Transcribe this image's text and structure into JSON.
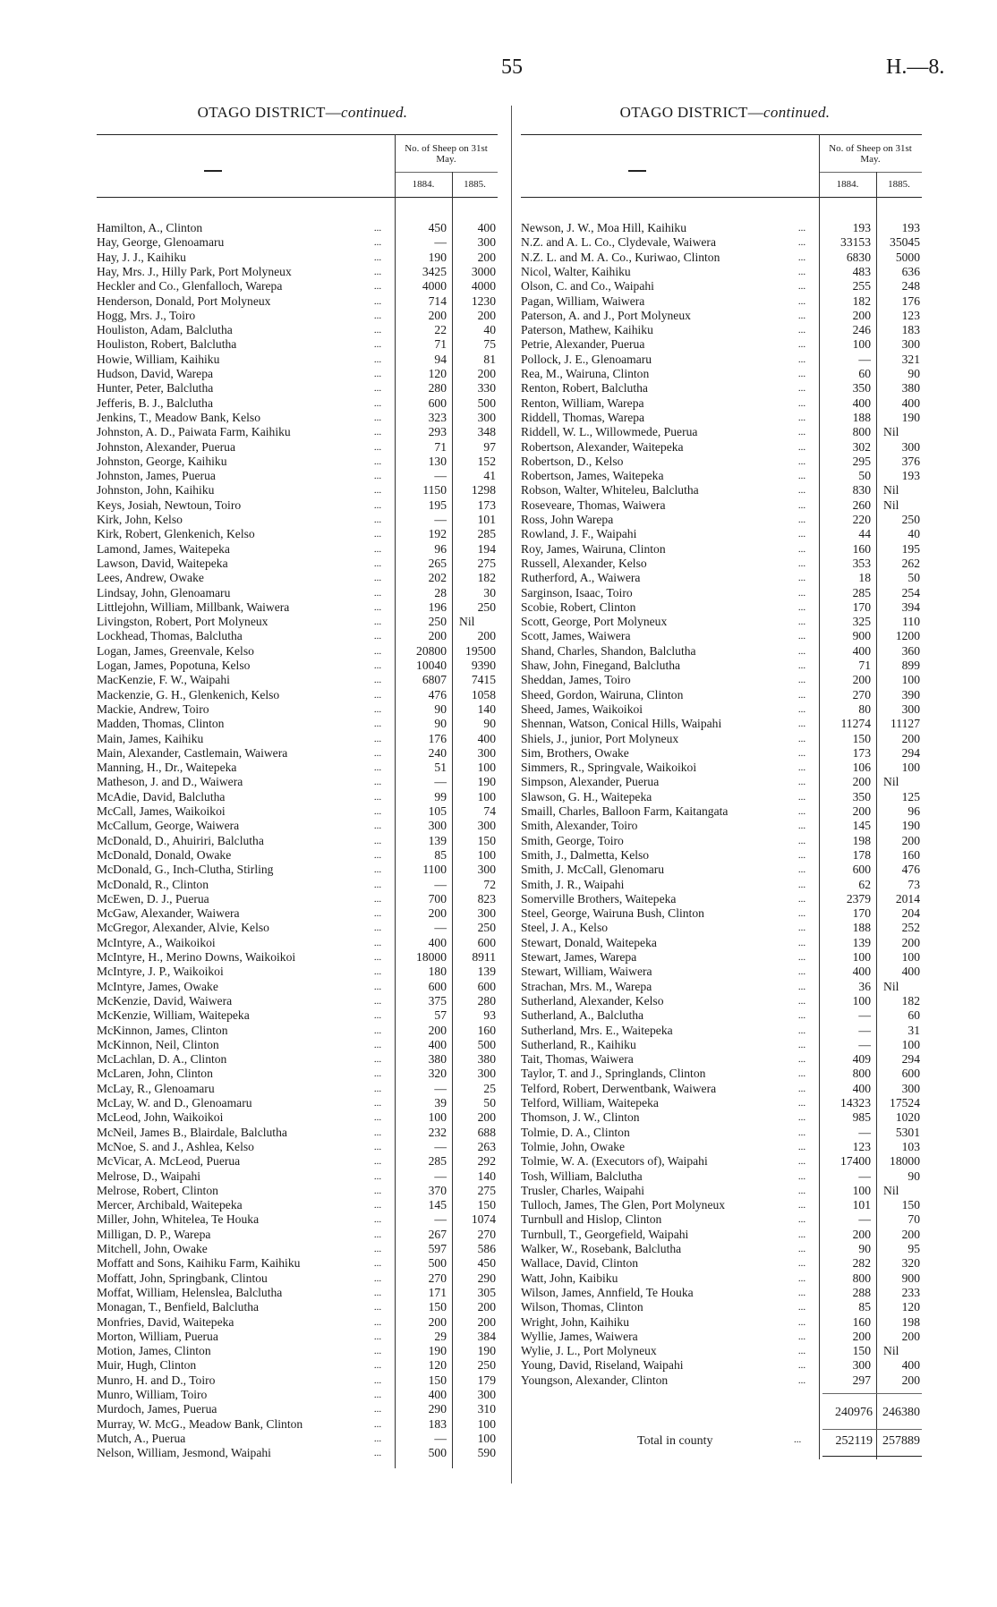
{
  "page_number": "55",
  "report_ref": "H.—8.",
  "left": {
    "heading": "OTAGO DISTRICT—",
    "heading_italic": "continued.",
    "col_dash": "—",
    "col_group": "No. of Sheep on 31st May.",
    "years": [
      "1884.",
      "1885."
    ],
    "rows": [
      [
        "Hamilton, A., Clinton",
        "450",
        "400"
      ],
      [
        "Hay, George, Glenoamaru",
        "—",
        "300"
      ],
      [
        "Hay, J. J., Kaihiku",
        "190",
        "200"
      ],
      [
        "Hay, Mrs. J., Hilly Park, Port Molyneux",
        "3425",
        "3000"
      ],
      [
        "Heckler and Co., Glenfalloch, Warepa",
        "4000",
        "4000"
      ],
      [
        "Henderson, Donald, Port Molyneux",
        "714",
        "1230"
      ],
      [
        "Hogg, Mrs. J., Toiro",
        "200",
        "200"
      ],
      [
        "Houliston, Adam, Balclutha",
        "22",
        "40"
      ],
      [
        "Houliston, Robert, Balclutha",
        "71",
        "75"
      ],
      [
        "Howie, William, Kaihiku",
        "94",
        "81"
      ],
      [
        "Hudson, David, Warepa",
        "120",
        "200"
      ],
      [
        "Hunter, Peter, Balclutha",
        "280",
        "330"
      ],
      [
        "Jefferis, B. J., Balclutha",
        "600",
        "500"
      ],
      [
        "Jenkins, T., Meadow Bank, Kelso",
        "323",
        "300"
      ],
      [
        "Johnston, A. D., Paiwata Farm, Kaihiku",
        "293",
        "348"
      ],
      [
        "Johnston, Alexander, Puerua",
        "71",
        "97"
      ],
      [
        "Johnston, George, Kaihiku",
        "130",
        "152"
      ],
      [
        "Johnston, James, Puerua",
        "—",
        "41"
      ],
      [
        "Johnston, John, Kaihiku",
        "1150",
        "1298"
      ],
      [
        "Keys, Josiah, Newtoun, Toiro",
        "195",
        "173"
      ],
      [
        "Kirk, John, Kelso",
        "—",
        "101"
      ],
      [
        "Kirk, Robert, Glenkenich, Kelso",
        "192",
        "285"
      ],
      [
        "Lamond, James, Waitepeka",
        "96",
        "194"
      ],
      [
        "Lawson, David, Waitepeka",
        "265",
        "275"
      ],
      [
        "Lees, Andrew, Owake",
        "202",
        "182"
      ],
      [
        "Lindsay, John, Glenoamaru",
        "28",
        "30"
      ],
      [
        "Littlejohn, William, Millbank, Waiwera",
        "196",
        "250"
      ],
      [
        "Livingston, Robert, Port Molyneux",
        "250",
        "Nil"
      ],
      [
        "Lockhead, Thomas, Balclutha",
        "200",
        "200"
      ],
      [
        "Logan, James, Greenvale, Kelso",
        "20800",
        "19500"
      ],
      [
        "Logan, James, Popotuna, Kelso",
        "10040",
        "9390"
      ],
      [
        "MacKenzie, F. W., Waipahi",
        "6807",
        "7415"
      ],
      [
        "Mackenzie, G. H., Glenkenich, Kelso",
        "476",
        "1058"
      ],
      [
        "Mackie, Andrew, Toiro",
        "90",
        "140"
      ],
      [
        "Madden, Thomas, Clinton",
        "90",
        "90"
      ],
      [
        "Main, James, Kaihiku",
        "176",
        "400"
      ],
      [
        "Main, Alexander, Castlemain, Waiwera",
        "240",
        "300"
      ],
      [
        "Manning, H., Dr., Waitepeka",
        "51",
        "100"
      ],
      [
        "Matheson, J. and D., Waiwera",
        "—",
        "190"
      ],
      [
        "McAdie, David, Balclutha",
        "99",
        "100"
      ],
      [
        "McCall, James, Waikoikoi",
        "105",
        "74"
      ],
      [
        "McCallum, George, Waiwera",
        "300",
        "300"
      ],
      [
        "McDonald, D., Ahuiriri, Balclutha",
        "139",
        "150"
      ],
      [
        "McDonald, Donald, Owake",
        "85",
        "100"
      ],
      [
        "McDonald, G., Inch-Clutha, Stirling",
        "1100",
        "300"
      ],
      [
        "McDonald, R., Clinton",
        "—",
        "72"
      ],
      [
        "McEwen, D. J., Puerua",
        "700",
        "823"
      ],
      [
        "McGaw, Alexander, Waiwera",
        "200",
        "300"
      ],
      [
        "McGregor, Alexander, Alvie, Kelso",
        "—",
        "250"
      ],
      [
        "McIntyre, A., Waikoikoi",
        "400",
        "600"
      ],
      [
        "McIntyre, H., Merino Downs, Waikoikoi",
        "18000",
        "8911"
      ],
      [
        "McIntyre, J. P., Waikoikoi",
        "180",
        "139"
      ],
      [
        "McIntyre, James, Owake",
        "600",
        "600"
      ],
      [
        "McKenzie, David, Waiwera",
        "375",
        "280"
      ],
      [
        "McKenzie, William, Waitepeka",
        "57",
        "93"
      ],
      [
        "McKinnon, James, Clinton",
        "200",
        "160"
      ],
      [
        "McKinnon, Neil, Clinton",
        "400",
        "500"
      ],
      [
        "McLachlan, D. A., Clinton",
        "380",
        "380"
      ],
      [
        "McLaren, John, Clinton",
        "320",
        "300"
      ],
      [
        "McLay, R., Glenoamaru",
        "—",
        "25"
      ],
      [
        "McLay, W. and D., Glenoamaru",
        "39",
        "50"
      ],
      [
        "McLeod, John, Waikoikoi",
        "100",
        "200"
      ],
      [
        "McNeil, James B., Blairdale, Balclutha",
        "232",
        "688"
      ],
      [
        "McNoe, S. and J., Ashlea, Kelso",
        "—",
        "263"
      ],
      [
        "McVicar, A. McLeod, Puerua",
        "285",
        "292"
      ],
      [
        "Melrose, D., Waipahi",
        "—",
        "140"
      ],
      [
        "Melrose, Robert, Clinton",
        "370",
        "275"
      ],
      [
        "Mercer, Archibald, Waitepeka",
        "145",
        "150"
      ],
      [
        "Miller, John, Whitelea, Te Houka",
        "—",
        "1074"
      ],
      [
        "Milligan, D. P., Warepa",
        "267",
        "270"
      ],
      [
        "Mitchell, John, Owake",
        "597",
        "586"
      ],
      [
        "Moffatt and Sons, Kaihiku Farm, Kaihiku",
        "500",
        "450"
      ],
      [
        "Moffatt, John, Springbank, Clintou",
        "270",
        "290"
      ],
      [
        "Moffat, William, Helenslea, Balclutha",
        "171",
        "305"
      ],
      [
        "Monagan, T., Benfield, Balclutha",
        "150",
        "200"
      ],
      [
        "Monfries, David, Waitepeka",
        "200",
        "200"
      ],
      [
        "Morton, William, Puerua",
        "29",
        "384"
      ],
      [
        "Motion, James, Clinton",
        "190",
        "190"
      ],
      [
        "Muir, Hugh, Clinton",
        "120",
        "250"
      ],
      [
        "Munro, H. and D., Toiro",
        "150",
        "179"
      ],
      [
        "Munro, William, Toiro",
        "400",
        "300"
      ],
      [
        "Murdoch, James, Puerua",
        "290",
        "310"
      ],
      [
        "Murray, W. McG., Meadow Bank, Clinton",
        "183",
        "100"
      ],
      [
        "Mutch, A., Puerua",
        "—",
        "100"
      ],
      [
        "Nelson, William, Jesmond, Waipahi",
        "500",
        "590"
      ]
    ]
  },
  "right": {
    "heading": "OTAGO DISTRICT—",
    "heading_italic": "continued.",
    "col_dash": "—",
    "col_group": "No. of Sheep on 31st May.",
    "years": [
      "1884.",
      "1885."
    ],
    "rows": [
      [
        "Newson, J. W., Moa Hill, Kaihiku",
        "193",
        "193"
      ],
      [
        "N.Z. and A. L. Co., Clydevale, Waiwera",
        "33153",
        "35045"
      ],
      [
        "N.Z. L. and M. A. Co., Kuriwao, Clinton",
        "6830",
        "5000"
      ],
      [
        "Nicol, Walter, Kaihiku",
        "483",
        "636"
      ],
      [
        "Olson, C. and Co., Waipahi",
        "255",
        "248"
      ],
      [
        "Pagan, William, Waiwera",
        "182",
        "176"
      ],
      [
        "Paterson, A. and J., Port Molyneux",
        "200",
        "123"
      ],
      [
        "Paterson, Mathew, Kaihiku",
        "246",
        "183"
      ],
      [
        "Petrie, Alexander, Puerua",
        "100",
        "300"
      ],
      [
        "Pollock, J. E., Glenoamaru",
        "—",
        "321"
      ],
      [
        "Rea, M., Wairuna, Clinton",
        "60",
        "90"
      ],
      [
        "Renton, Robert, Balclutha",
        "350",
        "380"
      ],
      [
        "Renton, William, Warepa",
        "400",
        "400"
      ],
      [
        "Riddell, Thomas, Warepa",
        "188",
        "190"
      ],
      [
        "Riddell, W. L., Willowmede, Puerua",
        "800",
        "Nil"
      ],
      [
        "Robertson, Alexander, Waitepeka",
        "302",
        "300"
      ],
      [
        "Robertson, D., Kelso",
        "295",
        "376"
      ],
      [
        "Robertson, James, Waitepeka",
        "50",
        "193"
      ],
      [
        "Robson, Walter, Whiteleu, Balclutha",
        "830",
        "Nil"
      ],
      [
        "Roseveare, Thomas, Waiwera",
        "260",
        "Nil"
      ],
      [
        "Ross, John Warepa",
        "220",
        "250"
      ],
      [
        "Rowland, J. F., Waipahi",
        "44",
        "40"
      ],
      [
        "Roy, James, Wairuna, Clinton",
        "160",
        "195"
      ],
      [
        "Russell, Alexander, Kelso",
        "353",
        "262"
      ],
      [
        "Rutherford, A., Waiwera",
        "18",
        "50"
      ],
      [
        "Sarginson, Isaac, Toiro",
        "285",
        "254"
      ],
      [
        "Scobie, Robert, Clinton",
        "170",
        "394"
      ],
      [
        "Scott, George, Port Molyneux",
        "325",
        "110"
      ],
      [
        "Scott, James, Waiwera",
        "900",
        "1200"
      ],
      [
        "Shand, Charles, Shandon, Balclutha",
        "400",
        "360"
      ],
      [
        "Shaw, John, Finegand, Balclutha",
        "71",
        "899"
      ],
      [
        "Sheddan, James, Toiro",
        "200",
        "100"
      ],
      [
        "Sheed, Gordon, Wairuna, Clinton",
        "270",
        "390"
      ],
      [
        "Sheed, James, Waikoikoi",
        "80",
        "300"
      ],
      [
        "Shennan, Watson, Conical Hills, Waipahi",
        "11274",
        "11127"
      ],
      [
        "Shiels, J., junior, Port Molyneux",
        "150",
        "200"
      ],
      [
        "Sim, Brothers, Owake",
        "173",
        "294"
      ],
      [
        "Simmers, R., Springvale, Waikoikoi",
        "106",
        "100"
      ],
      [
        "Simpson, Alexander, Puerua",
        "200",
        "Nil"
      ],
      [
        "Slawson, G. H., Waitepeka",
        "350",
        "125"
      ],
      [
        "Smaill, Charles, Balloon Farm, Kaitangata",
        "200",
        "96"
      ],
      [
        "Smith, Alexander, Toiro",
        "145",
        "190"
      ],
      [
        "Smith, George, Toiro",
        "198",
        "200"
      ],
      [
        "Smith, J., Dalmetta, Kelso",
        "178",
        "160"
      ],
      [
        "Smith, J. McCall, Glenomaru",
        "600",
        "476"
      ],
      [
        "Smith, J. R., Waipahi",
        "62",
        "73"
      ],
      [
        "Somerville Brothers, Waitepeka",
        "2379",
        "2014"
      ],
      [
        "Steel, George, Wairuna Bush, Clinton",
        "170",
        "204"
      ],
      [
        "Steel, J. A., Kelso",
        "188",
        "252"
      ],
      [
        "Stewart, Donald, Waitepeka",
        "139",
        "200"
      ],
      [
        "Stewart, James, Warepa",
        "100",
        "100"
      ],
      [
        "Stewart, William, Waiwera",
        "400",
        "400"
      ],
      [
        "Strachan, Mrs. M., Warepa",
        "36",
        "Nil"
      ],
      [
        "Sutherland, Alexander, Kelso",
        "100",
        "182"
      ],
      [
        "Sutherland, A., Balclutha",
        "—",
        "60"
      ],
      [
        "Sutherland, Mrs. E., Waitepeka",
        "—",
        "31"
      ],
      [
        "Sutherland, R., Kaihiku",
        "—",
        "100"
      ],
      [
        "Tait, Thomas, Waiwera",
        "409",
        "294"
      ],
      [
        "Taylor, T. and J., Springlands, Clinton",
        "800",
        "600"
      ],
      [
        "Telford, Robert, Derwentbank, Waiwera",
        "400",
        "300"
      ],
      [
        "Telford, William, Waitepeka",
        "14323",
        "17524"
      ],
      [
        "Thomson, J. W., Clinton",
        "985",
        "1020"
      ],
      [
        "Tolmie, D. A., Clinton",
        "—",
        "5301"
      ],
      [
        "Tolmie, John, Owake",
        "123",
        "103"
      ],
      [
        "Tolmie, W. A. (Executors of), Waipahi",
        "17400",
        "18000"
      ],
      [
        "Tosh, William, Balclutha",
        "—",
        "90"
      ],
      [
        "Trusler, Charles, Waipahi",
        "100",
        "Nil"
      ],
      [
        "Tulloch, James, The Glen, Port Molyneux",
        "101",
        "150"
      ],
      [
        "Turnbull and Hislop, Clinton",
        "—",
        "70"
      ],
      [
        "Turnbull, T., Georgefield, Waipahi",
        "200",
        "200"
      ],
      [
        "Walker, W., Rosebank, Balclutha",
        "90",
        "95"
      ],
      [
        "Wallace, David, Clinton",
        "282",
        "320"
      ],
      [
        "Watt, John, Kaibiku",
        "800",
        "900"
      ],
      [
        "Wilson, James, Annfield, Te Houka",
        "288",
        "233"
      ],
      [
        "Wilson, Thomas, Clinton",
        "85",
        "120"
      ],
      [
        "Wright, John, Kaihiku",
        "160",
        "198"
      ],
      [
        "Wyllie, James, Waiwera",
        "200",
        "200"
      ],
      [
        "Wylie, J. L., Port Molyneux",
        "150",
        "Nil"
      ],
      [
        "Young, David, Riseland, Waipahi",
        "300",
        "400"
      ],
      [
        "Youngson, Alexander, Clinton",
        "297",
        "200"
      ]
    ],
    "subtotal": [
      "240976",
      "246380"
    ],
    "total_label": "Total in county",
    "total": [
      "252119",
      "257889"
    ]
  },
  "leader": "..."
}
